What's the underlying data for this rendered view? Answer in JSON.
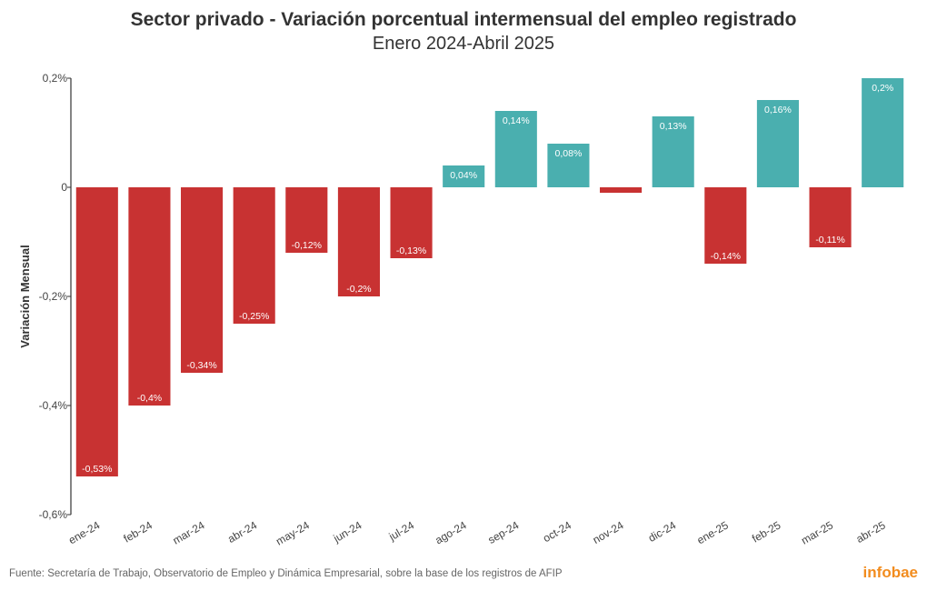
{
  "chart_data": {
    "type": "bar",
    "title": "Sector privado - Variación porcentual intermensual del empleo registrado",
    "subtitle": "Enero 2024-Abril 2025",
    "xlabel": "",
    "ylabel": "Variación Mensual",
    "ylim": [
      -0.6,
      0.2
    ],
    "yticks": [
      0.2,
      0,
      -0.2,
      -0.4,
      -0.6
    ],
    "ytick_labels": [
      "0,2%",
      "0",
      "-0,2%",
      "-0,4%",
      "-0,6%"
    ],
    "categories": [
      "ene-24",
      "feb-24",
      "mar-24",
      "abr-24",
      "may-24",
      "jun-24",
      "jul-24",
      "ago-24",
      "sep-24",
      "oct-24",
      "nov-24",
      "dic-24",
      "ene-25",
      "feb-25",
      "mar-25",
      "abr-25"
    ],
    "values": [
      -0.53,
      -0.4,
      -0.34,
      -0.25,
      -0.12,
      -0.2,
      -0.13,
      0.04,
      0.14,
      0.08,
      -0.01,
      0.13,
      -0.14,
      0.16,
      -0.11,
      0.2
    ],
    "data_labels": [
      "-0,53%",
      "-0,4%",
      "-0,34%",
      "-0,25%",
      "-0,12%",
      "-0,2%",
      "-0,13%",
      "0,04%",
      "0,14%",
      "0,08%",
      "",
      "0,13%",
      "-0,14%",
      "0,16%",
      "-0,11%",
      "0,2%"
    ],
    "colors": {
      "positive": "#4aafaf",
      "negative": "#c83232"
    },
    "grid": false
  },
  "footer": {
    "source": "Fuente: Secretaría de Trabajo, Observatorio de Empleo y Dinámica Empresarial, sobre la base de los registros de AFIP",
    "logo": "infobae"
  }
}
